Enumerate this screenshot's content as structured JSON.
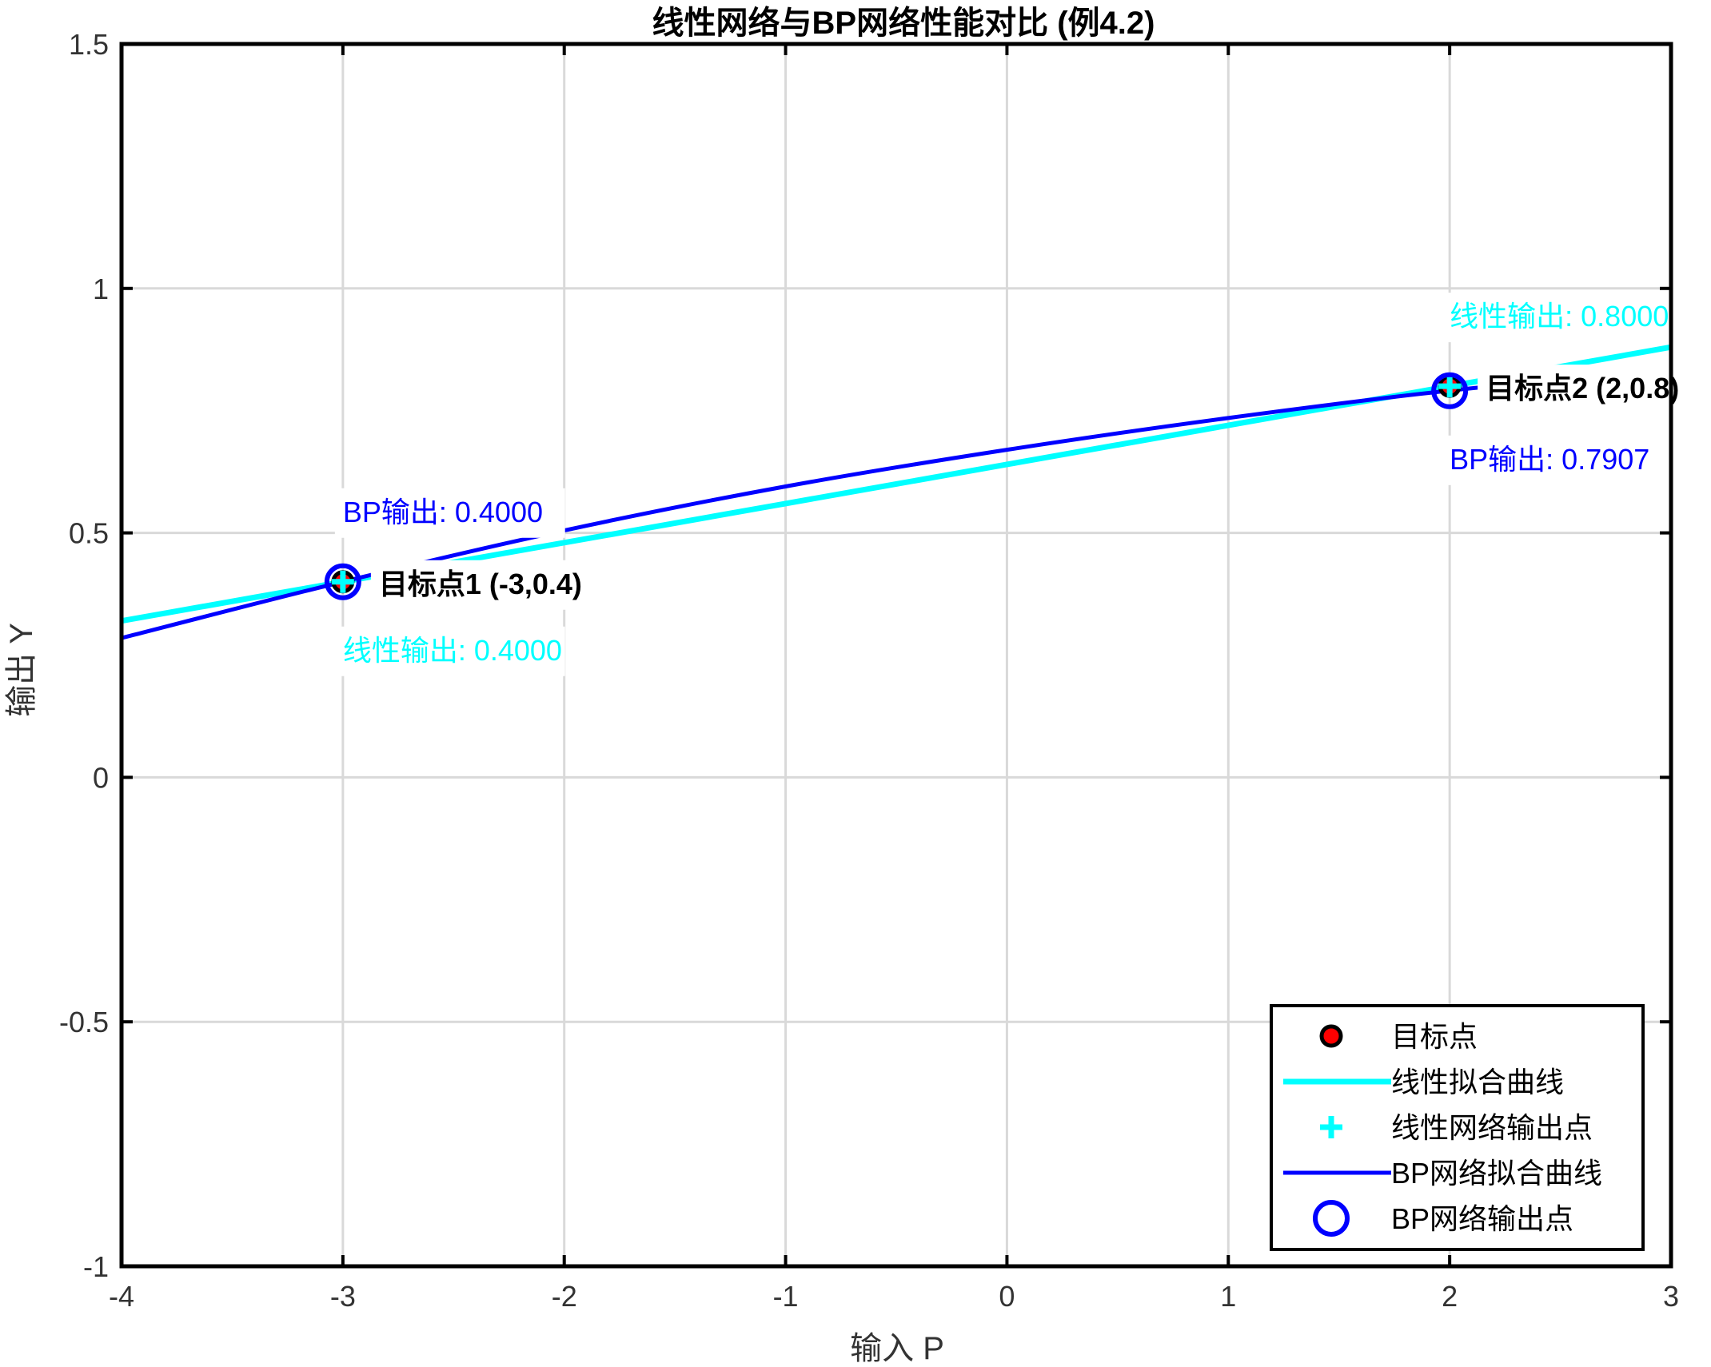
{
  "chart_data": {
    "type": "line",
    "title": "线性网络与BP网络性能对比 (例4.2)",
    "xlabel": "输入 P",
    "ylabel": "输出 Y",
    "xlim": [
      -4,
      3
    ],
    "ylim": [
      -1,
      1.5
    ],
    "xticks": [
      -4,
      -3,
      -2,
      -1,
      0,
      1,
      2,
      3
    ],
    "yticks": [
      -1,
      -0.5,
      0,
      0.5,
      1,
      1.5
    ],
    "xtick_labels": [
      "-4",
      "-3",
      "-2",
      "-1",
      "0",
      "1",
      "2",
      "3"
    ],
    "ytick_labels": [
      "-1",
      "-0.5",
      "0",
      "0.5",
      "1",
      "1.5"
    ],
    "grid": true,
    "legend_position": "bottom-right",
    "series": [
      {
        "name": "线性拟合曲线",
        "kind": "line",
        "color": "#00FFFF",
        "x": [
          -4,
          -3,
          -2,
          -1,
          0,
          1,
          2,
          3
        ],
        "y": [
          0.32,
          0.4,
          0.48,
          0.56,
          0.64,
          0.72,
          0.8,
          0.88
        ]
      },
      {
        "name": "BP网络拟合曲线",
        "kind": "line",
        "color": "#0000FF",
        "x": [
          -4,
          -3,
          -2,
          -1,
          0,
          1,
          2,
          3
        ],
        "y": [
          0.285,
          0.4,
          0.505,
          0.595,
          0.67,
          0.735,
          0.791,
          0.833
        ]
      },
      {
        "name": "目标点",
        "kind": "marker-dot",
        "color": "#FF0000",
        "x": [
          -3,
          2
        ],
        "y": [
          0.4,
          0.8
        ]
      },
      {
        "name": "线性网络输出点",
        "kind": "marker-plus",
        "color": "#00FFFF",
        "x": [
          -3,
          2
        ],
        "y": [
          0.4,
          0.8
        ]
      },
      {
        "name": "BP网络输出点",
        "kind": "marker-circle",
        "color": "#0000FF",
        "x": [
          -3,
          2
        ],
        "y": [
          0.4,
          0.7907
        ]
      }
    ],
    "annotations": [
      {
        "text": "目标点1 (-3,0.4)",
        "x": -3,
        "y": 0.4,
        "color": "#000000",
        "anchor": "right"
      },
      {
        "text": "目标点2 (2,0.8)",
        "x": 2,
        "y": 0.8,
        "color": "#000000",
        "anchor": "right"
      },
      {
        "text": "BP输出: 0.4000",
        "x": -3,
        "y": 0.4,
        "color": "#0000FF",
        "anchor": "above"
      },
      {
        "text": "线性输出: 0.4000",
        "x": -3,
        "y": 0.4,
        "color": "#00FFFF",
        "anchor": "below"
      },
      {
        "text": "线性输出: 0.8000",
        "x": 2,
        "y": 0.8,
        "color": "#00FFFF",
        "anchor": "above"
      },
      {
        "text": "BP输出: 0.7907",
        "x": 2,
        "y": 0.7907,
        "color": "#0000FF",
        "anchor": "below"
      }
    ]
  }
}
